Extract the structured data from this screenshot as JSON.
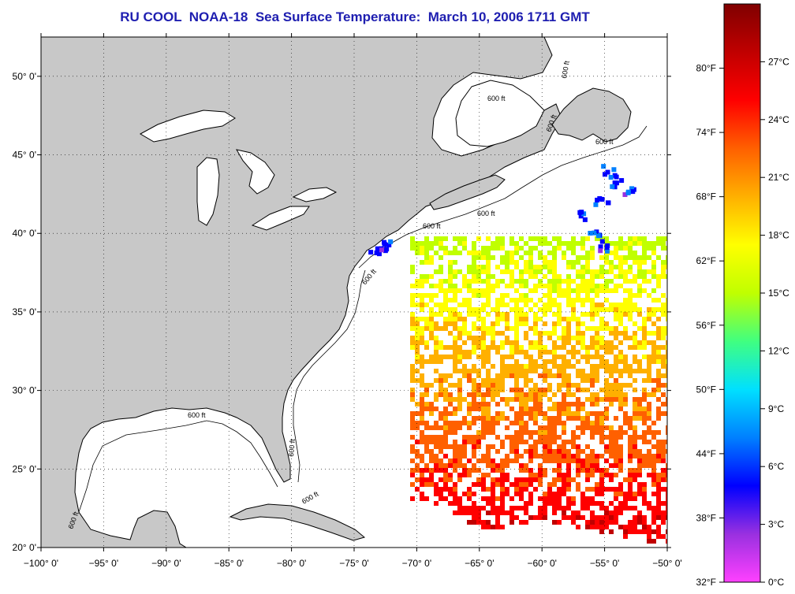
{
  "title": "RU COOL  NOAA-18  Sea Surface Temperature:  March 10, 2006 1711 GMT",
  "map": {
    "lon_range": [
      -100,
      -50
    ],
    "lat_range": [
      20,
      52.5
    ],
    "lat_ticks": [
      {
        "value": 50,
        "label": "50° 0'"
      },
      {
        "value": 45,
        "label": "45° 0'"
      },
      {
        "value": 40,
        "label": "40° 0'"
      },
      {
        "value": 35,
        "label": "35° 0'"
      },
      {
        "value": 30,
        "label": "30° 0'"
      },
      {
        "value": 25,
        "label": "25° 0'"
      },
      {
        "value": 20,
        "label": "20° 0'"
      }
    ],
    "lon_ticks": [
      {
        "value": -100,
        "label": "−100° 0'"
      },
      {
        "value": -95,
        "label": "−95° 0'"
      },
      {
        "value": -90,
        "label": "−90° 0'"
      },
      {
        "value": -85,
        "label": "−85° 0'"
      },
      {
        "value": -80,
        "label": "−80° 0'"
      },
      {
        "value": -75,
        "label": "−75° 0'"
      },
      {
        "value": -70,
        "label": "−70° 0'"
      },
      {
        "value": -65,
        "label": "−65° 0'"
      },
      {
        "value": -60,
        "label": "−60° 0'"
      },
      {
        "value": -55,
        "label": "−55° 0'"
      },
      {
        "value": -50,
        "label": "−50° 0'"
      }
    ],
    "isobath_labels": [
      "600 ft",
      "600 ft",
      "600 ft",
      "600 ft",
      "600 ft",
      "600 ft",
      "600 ft",
      "600 ft",
      "600 ft",
      "600 ft",
      "600 ft"
    ],
    "land_color": "#c8c8c8",
    "grid": true
  },
  "colorbar": {
    "fahrenheit_labels": [
      "80°F",
      "74°F",
      "68°F",
      "62°F",
      "56°F",
      "50°F",
      "44°F",
      "38°F",
      "32°F"
    ],
    "celsius_labels": [
      "27°C",
      "24°C",
      "21°C",
      "18°C",
      "15°C",
      "12°C",
      "9°C",
      "6°C",
      "3°C",
      "0°C"
    ],
    "colors": [
      "#ff40ff",
      "#9930e0",
      "#0000ff",
      "#0080ff",
      "#00e0ff",
      "#40ff80",
      "#c0ff00",
      "#ffff00",
      "#ffb000",
      "#ff6000",
      "#ff0000",
      "#c00000",
      "#800000"
    ]
  }
}
